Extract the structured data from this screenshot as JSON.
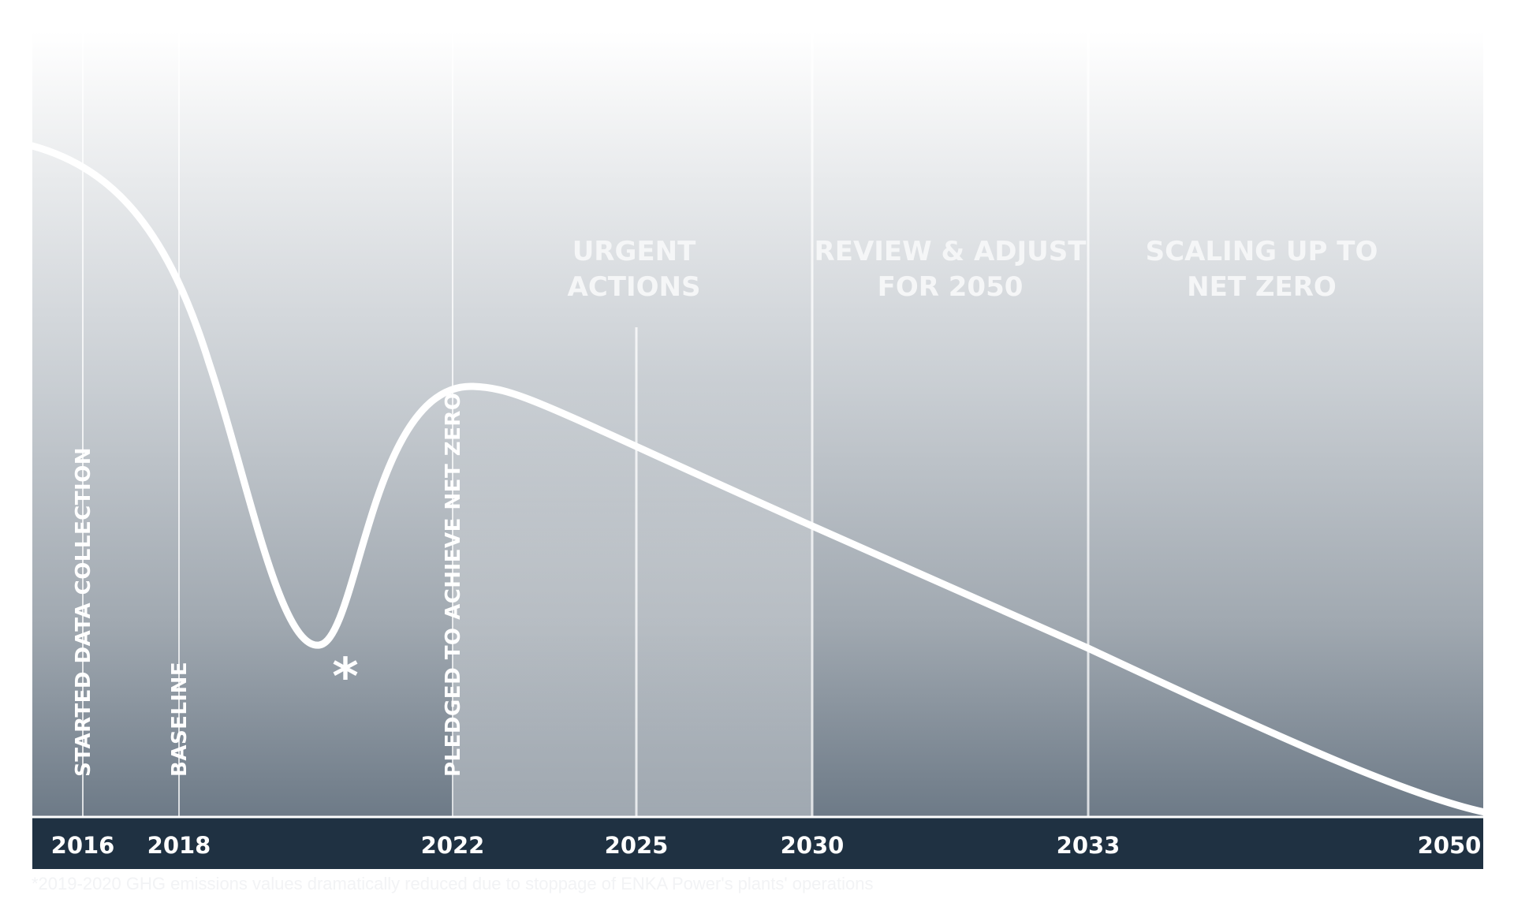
{
  "phases": [
    {
      "line1": "URGENT",
      "line2": "ACTIONS"
    },
    {
      "line1": "REVIEW & ADJUST",
      "line2": "FOR 2050"
    },
    {
      "line1": "SCALING UP TO",
      "line2": "NET ZERO"
    }
  ],
  "milestones": [
    {
      "label": "STARTED DATA COLLECTION"
    },
    {
      "label": "BASELINE"
    },
    {
      "label": "PLEDGED TO ACHIEVE NET ZERO"
    }
  ],
  "years": [
    "2016",
    "2018",
    "2022",
    "2025",
    "2030",
    "2033",
    "2050"
  ],
  "asterisk": "*",
  "footnote": "*2019-2020 GHG emissions values dramatically reduced due to stoppage of ENKA Power's plants' operations",
  "colors": {
    "axis_bar": "#1f3142",
    "gradient_top": "#ffffff",
    "gradient_bottom": "#6e7b89",
    "highlight_band": "#c8ccd1",
    "curve": "#ffffff"
  }
}
